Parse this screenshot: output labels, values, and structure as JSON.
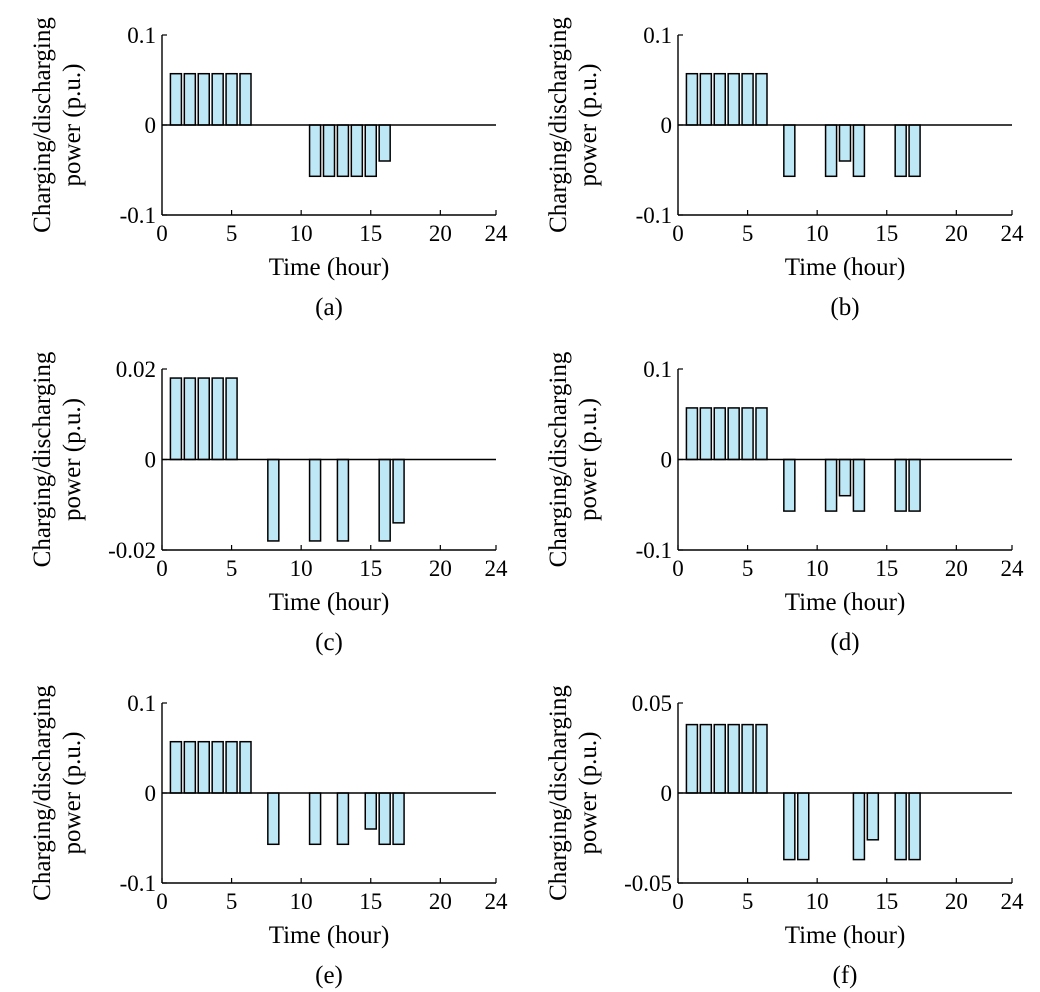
{
  "colors": {
    "bar_fill": "#bfe8f7",
    "bar_stroke": "#000000",
    "axis": "#000000"
  },
  "chart_data": [
    {
      "type": "bar",
      "panel_label": "(a)",
      "xlabel": "Time (hour)",
      "ylabel_lines": [
        "Charging/discharging",
        "power (p.u.)"
      ],
      "xlim": [
        0,
        24
      ],
      "ylim": [
        -0.1,
        0.1
      ],
      "xticks": [
        0,
        5,
        10,
        15,
        20,
        24
      ],
      "xtick_labels": [
        "0",
        "5",
        "10",
        "15",
        "20",
        "24"
      ],
      "yticks": [
        -0.1,
        0,
        0.1
      ],
      "ytick_labels": [
        "-0.1",
        "0",
        "0.1"
      ],
      "x": [
        1,
        2,
        3,
        4,
        5,
        6,
        7,
        8,
        9,
        10,
        11,
        12,
        13,
        14,
        15,
        16,
        17,
        18,
        19,
        20,
        21,
        22,
        23,
        24
      ],
      "values": [
        0.057,
        0.057,
        0.057,
        0.057,
        0.057,
        0.057,
        0,
        0,
        0,
        0,
        -0.057,
        -0.057,
        -0.057,
        -0.057,
        -0.057,
        -0.04,
        0,
        0,
        0,
        0,
        0,
        0,
        0,
        0
      ]
    },
    {
      "type": "bar",
      "panel_label": "(b)",
      "xlabel": "Time (hour)",
      "ylabel_lines": [
        "Charging/discharging",
        "power (p.u.)"
      ],
      "xlim": [
        0,
        24
      ],
      "ylim": [
        -0.1,
        0.1
      ],
      "xticks": [
        0,
        5,
        10,
        15,
        20,
        24
      ],
      "xtick_labels": [
        "0",
        "5",
        "10",
        "15",
        "20",
        "24"
      ],
      "yticks": [
        -0.1,
        0,
        0.1
      ],
      "ytick_labels": [
        "-0.1",
        "0",
        "0.1"
      ],
      "x": [
        1,
        2,
        3,
        4,
        5,
        6,
        7,
        8,
        9,
        10,
        11,
        12,
        13,
        14,
        15,
        16,
        17,
        18,
        19,
        20,
        21,
        22,
        23,
        24
      ],
      "values": [
        0.057,
        0.057,
        0.057,
        0.057,
        0.057,
        0.057,
        0,
        -0.057,
        0,
        0,
        -0.057,
        -0.04,
        -0.057,
        0,
        0,
        -0.057,
        -0.057,
        0,
        0,
        0,
        0,
        0,
        0,
        0
      ]
    },
    {
      "type": "bar",
      "panel_label": "(c)",
      "xlabel": "Time (hour)",
      "ylabel_lines": [
        "Charging/discharging",
        "power (p.u.)"
      ],
      "xlim": [
        0,
        24
      ],
      "ylim": [
        -0.02,
        0.02
      ],
      "xticks": [
        0,
        5,
        10,
        15,
        20,
        24
      ],
      "xtick_labels": [
        "0",
        "5",
        "10",
        "15",
        "20",
        "24"
      ],
      "yticks": [
        -0.02,
        0,
        0.02
      ],
      "ytick_labels": [
        "-0.02",
        "0",
        "0.02"
      ],
      "x": [
        1,
        2,
        3,
        4,
        5,
        6,
        7,
        8,
        9,
        10,
        11,
        12,
        13,
        14,
        15,
        16,
        17,
        18,
        19,
        20,
        21,
        22,
        23,
        24
      ],
      "values": [
        0.018,
        0.018,
        0.018,
        0.018,
        0.018,
        0,
        0,
        -0.018,
        0,
        0,
        -0.018,
        0,
        -0.018,
        0,
        0,
        -0.018,
        -0.014,
        0,
        0,
        0,
        0,
        0,
        0,
        0
      ]
    },
    {
      "type": "bar",
      "panel_label": "(d)",
      "xlabel": "Time (hour)",
      "ylabel_lines": [
        "Charging/discharging",
        "power (p.u.)"
      ],
      "xlim": [
        0,
        24
      ],
      "ylim": [
        -0.1,
        0.1
      ],
      "xticks": [
        0,
        5,
        10,
        15,
        20,
        24
      ],
      "xtick_labels": [
        "0",
        "5",
        "10",
        "15",
        "20",
        "24"
      ],
      "yticks": [
        -0.1,
        0,
        0.1
      ],
      "ytick_labels": [
        "-0.1",
        "0",
        "0.1"
      ],
      "x": [
        1,
        2,
        3,
        4,
        5,
        6,
        7,
        8,
        9,
        10,
        11,
        12,
        13,
        14,
        15,
        16,
        17,
        18,
        19,
        20,
        21,
        22,
        23,
        24
      ],
      "values": [
        0.057,
        0.057,
        0.057,
        0.057,
        0.057,
        0.057,
        0,
        -0.057,
        0,
        0,
        -0.057,
        -0.04,
        -0.057,
        0,
        0,
        -0.057,
        -0.057,
        0,
        0,
        0,
        0,
        0,
        0,
        0
      ]
    },
    {
      "type": "bar",
      "panel_label": "(e)",
      "xlabel": "Time (hour)",
      "ylabel_lines": [
        "Charging/discharging",
        "power (p.u.)"
      ],
      "xlim": [
        0,
        24
      ],
      "ylim": [
        -0.1,
        0.1
      ],
      "xticks": [
        0,
        5,
        10,
        15,
        20,
        24
      ],
      "xtick_labels": [
        "0",
        "5",
        "10",
        "15",
        "20",
        "24"
      ],
      "yticks": [
        -0.1,
        0,
        0.1
      ],
      "ytick_labels": [
        "-0.1",
        "0",
        "0.1"
      ],
      "x": [
        1,
        2,
        3,
        4,
        5,
        6,
        7,
        8,
        9,
        10,
        11,
        12,
        13,
        14,
        15,
        16,
        17,
        18,
        19,
        20,
        21,
        22,
        23,
        24
      ],
      "values": [
        0.057,
        0.057,
        0.057,
        0.057,
        0.057,
        0.057,
        0,
        -0.057,
        0,
        0,
        -0.057,
        0,
        -0.057,
        0,
        -0.04,
        -0.057,
        -0.057,
        0,
        0,
        0,
        0,
        0,
        0,
        0
      ]
    },
    {
      "type": "bar",
      "panel_label": "(f)",
      "xlabel": "Time (hour)",
      "ylabel_lines": [
        "Charging/discharging",
        "power (p.u.)"
      ],
      "xlim": [
        0,
        24
      ],
      "ylim": [
        -0.05,
        0.05
      ],
      "xticks": [
        0,
        5,
        10,
        15,
        20,
        24
      ],
      "xtick_labels": [
        "0",
        "5",
        "10",
        "15",
        "20",
        "24"
      ],
      "yticks": [
        -0.05,
        0,
        0.05
      ],
      "ytick_labels": [
        "-0.05",
        "0",
        "0.05"
      ],
      "x": [
        1,
        2,
        3,
        4,
        5,
        6,
        7,
        8,
        9,
        10,
        11,
        12,
        13,
        14,
        15,
        16,
        17,
        18,
        19,
        20,
        21,
        22,
        23,
        24
      ],
      "values": [
        0.038,
        0.038,
        0.038,
        0.038,
        0.038,
        0.038,
        0,
        -0.037,
        -0.037,
        0,
        0,
        0,
        -0.037,
        -0.026,
        0,
        -0.037,
        -0.037,
        0,
        0,
        0,
        0,
        0,
        0,
        0
      ]
    }
  ]
}
